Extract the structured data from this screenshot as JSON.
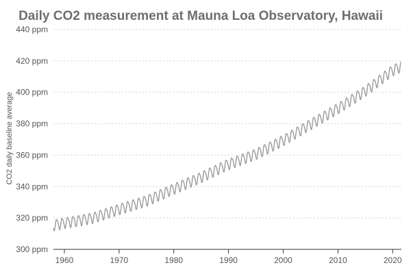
{
  "chart_data": {
    "type": "line",
    "title": "Daily CO2 measurement at Mauna Loa Observatory, Hawaii",
    "xlabel": "",
    "ylabel": "CO2 daily baseline average",
    "xlim": [
      1958,
      2021.6
    ],
    "ylim": [
      300,
      440
    ],
    "x_ticks": [
      1960,
      1970,
      1980,
      1990,
      2000,
      2010,
      2020
    ],
    "y_ticks": [
      300,
      320,
      340,
      360,
      380,
      400,
      420,
      440
    ],
    "y_tick_labels": [
      "300 ppm",
      "320 ppm",
      "340 ppm",
      "360 ppm",
      "380 ppm",
      "400 ppm",
      "420 ppm",
      "440 ppm"
    ],
    "grid": "horizontal dotted",
    "series": [
      {
        "color": "#9a9a9a",
        "trend": [
          [
            1958,
            315.5
          ],
          [
            1960,
            316.9
          ],
          [
            1965,
            320.0
          ],
          [
            1970,
            325.7
          ],
          [
            1975,
            331.1
          ],
          [
            1980,
            338.7
          ],
          [
            1985,
            346.1
          ],
          [
            1990,
            354.4
          ],
          [
            1995,
            360.8
          ],
          [
            2000,
            369.6
          ],
          [
            2005,
            379.8
          ],
          [
            2010,
            389.9
          ],
          [
            2015,
            401.0
          ],
          [
            2020,
            414.2
          ],
          [
            2021.5,
            416.5
          ]
        ],
        "seasonal_amplitude_ppm": 3.3
      }
    ]
  }
}
